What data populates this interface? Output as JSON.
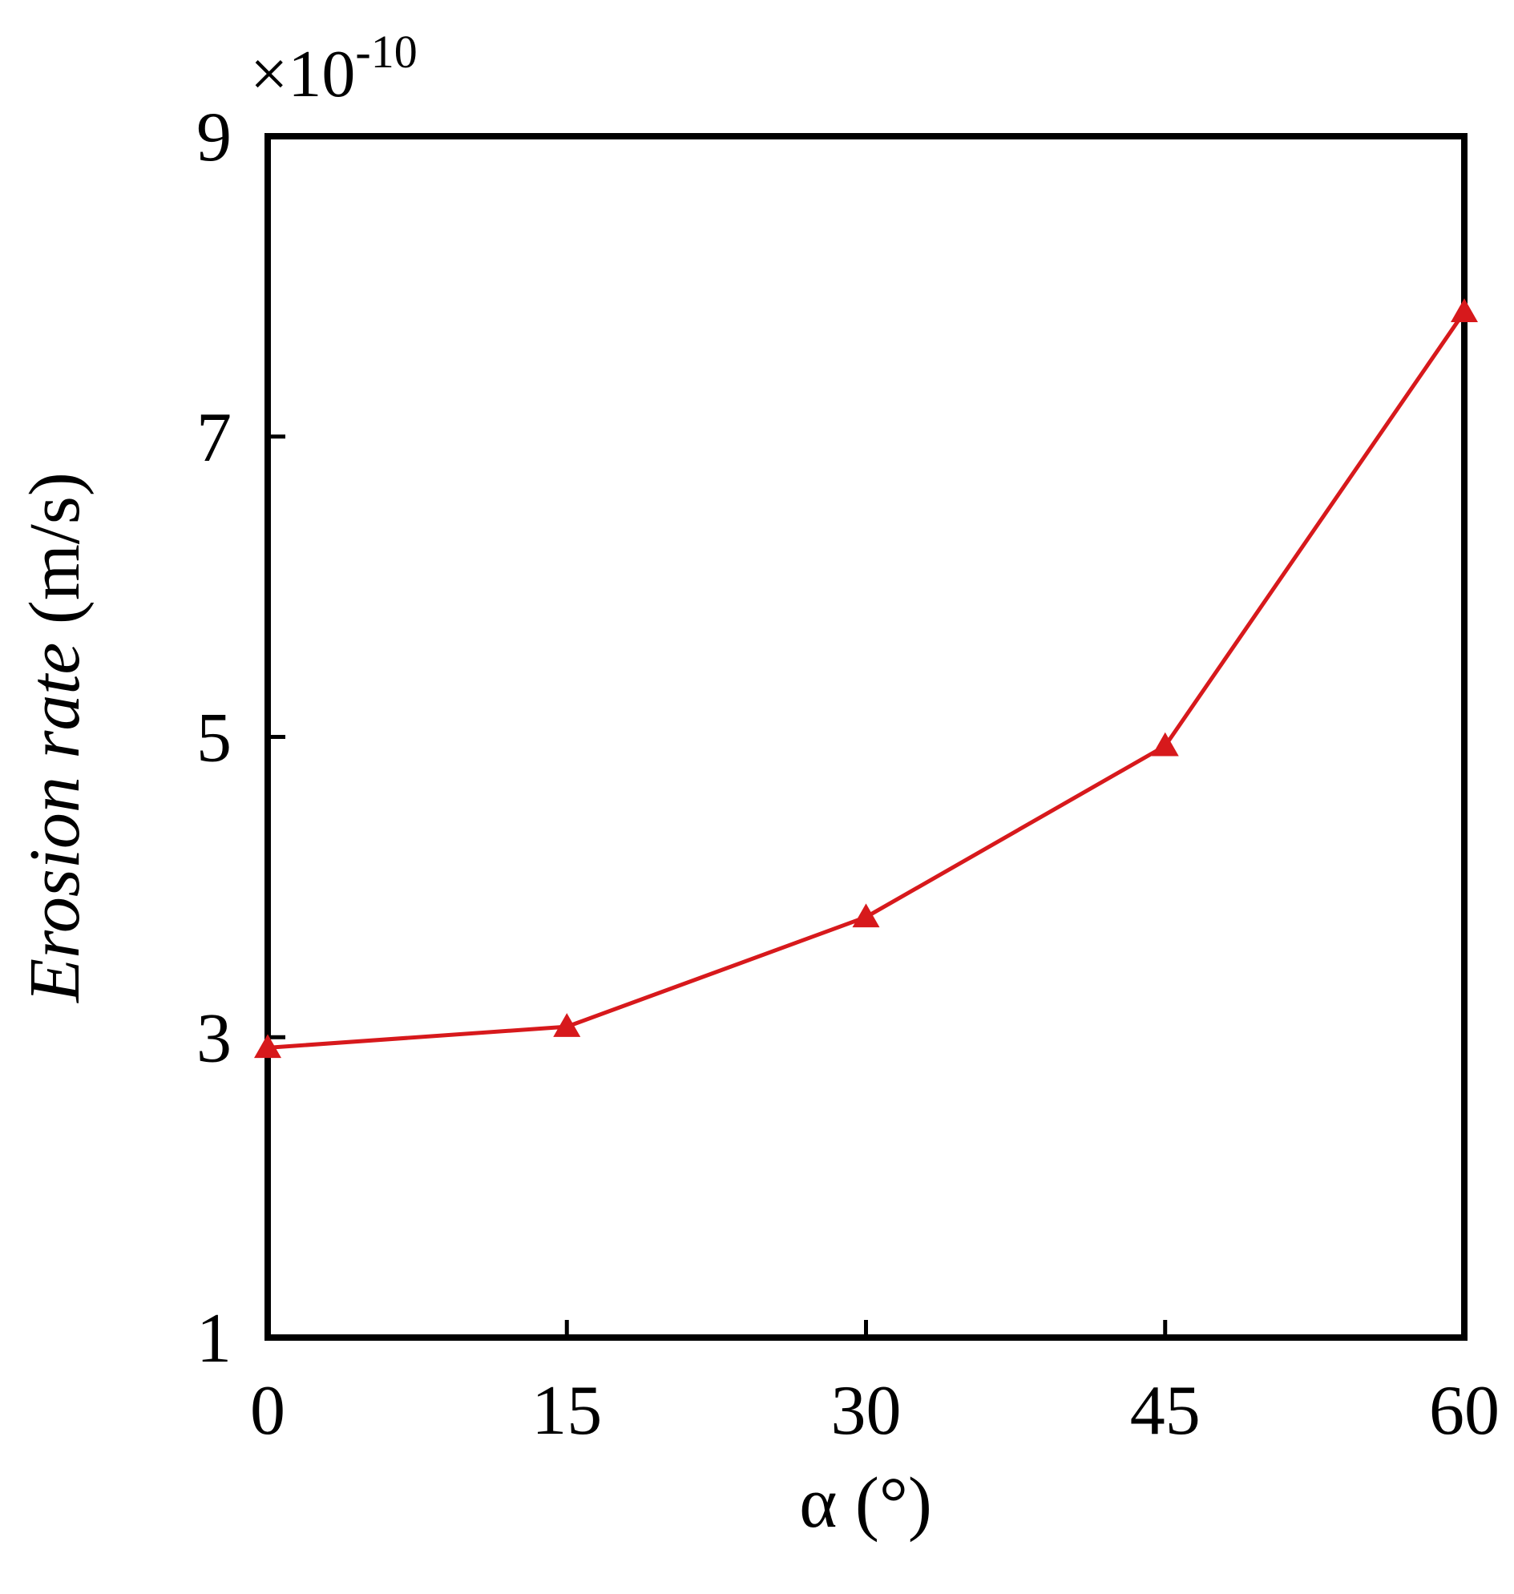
{
  "chart_data": {
    "type": "line",
    "multiplier": "×10",
    "multiplier_exponent": "-10",
    "ylabel_italic": "Erosion rate",
    "ylabel_unit": "(m/s)",
    "xlabel": "α (°)",
    "x": [
      0,
      15,
      30,
      45,
      60
    ],
    "series": [
      {
        "color": "#d7191c",
        "marker": "triangle",
        "values": [
          2.93,
          3.07,
          3.8,
          4.94,
          7.83
        ]
      }
    ],
    "xlim": [
      0,
      60
    ],
    "xticks": [
      0,
      15,
      30,
      45,
      60
    ],
    "ylim": [
      1,
      9
    ],
    "yticks": [
      1,
      3,
      5,
      7,
      9
    ],
    "grid": false
  }
}
